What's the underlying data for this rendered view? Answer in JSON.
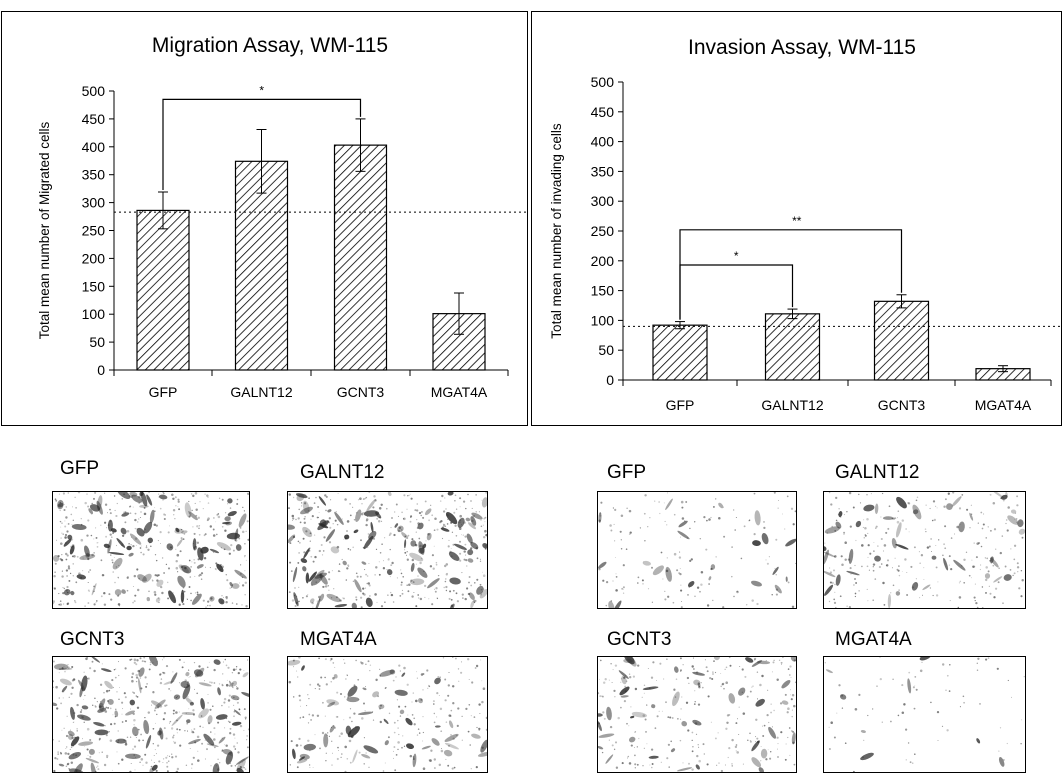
{
  "chart_data": [
    {
      "type": "bar",
      "title": "Migration Assay, WM-115",
      "xlabel": "",
      "ylabel": "Total mean number of Migrated cells",
      "categories": [
        "GFP",
        "GALNT12",
        "GCNT3",
        "MGAT4A"
      ],
      "values": [
        286,
        374,
        403,
        101
      ],
      "errors": [
        33,
        57,
        47,
        37
      ],
      "ylim": [
        0,
        500
      ],
      "yticks": [
        "0",
        "50",
        "100",
        "150",
        "200",
        "250",
        "300",
        "350",
        "400",
        "450",
        "500"
      ],
      "reference_line": 283,
      "significance": [
        {
          "from": "GFP",
          "to": "GCNT3",
          "level": 485,
          "label": "*"
        }
      ],
      "bar_pattern": "diagonal-hatch",
      "grid": false,
      "legend": "none"
    },
    {
      "type": "bar",
      "title": "Invasion Assay, WM-115",
      "xlabel": "",
      "ylabel": "Total mean number of invading cells",
      "categories": [
        "GFP",
        "GALNT12",
        "GCNT3",
        "MGAT4A"
      ],
      "values": [
        92,
        111,
        132,
        19
      ],
      "errors": [
        6,
        8,
        11,
        5
      ],
      "ylim": [
        0,
        500
      ],
      "yticks": [
        "0",
        "50",
        "100",
        "150",
        "200",
        "250",
        "300",
        "350",
        "400",
        "450",
        "500"
      ],
      "reference_line": 90,
      "significance": [
        {
          "from": "GFP",
          "to": "GALNT12",
          "level": 193,
          "label": "*"
        },
        {
          "from": "GFP",
          "to": "GCNT3",
          "level": 252,
          "label": "**"
        }
      ],
      "bar_pattern": "diagonal-hatch",
      "grid": false,
      "legend": "none"
    }
  ],
  "micrographs": {
    "migration": [
      {
        "label": "GFP",
        "density": "high"
      },
      {
        "label": "GALNT12",
        "density": "high"
      },
      {
        "label": "GCNT3",
        "density": "high"
      },
      {
        "label": "MGAT4A",
        "density": "medium"
      }
    ],
    "invasion": [
      {
        "label": "GFP",
        "density": "low"
      },
      {
        "label": "GALNT12",
        "density": "medium"
      },
      {
        "label": "GCNT3",
        "density": "medium"
      },
      {
        "label": "MGAT4A",
        "density": "very-low"
      }
    ]
  },
  "colors": {
    "bar_fill": "#ffffff",
    "hatch": "#000000",
    "axis": "#000000",
    "stain": "#2a2a2a"
  }
}
